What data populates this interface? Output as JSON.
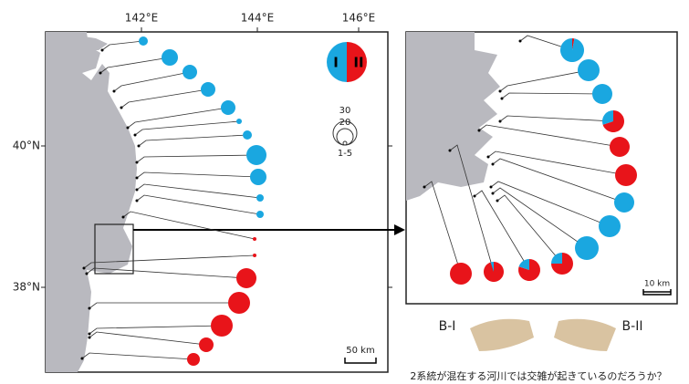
{
  "map": {
    "lon_labels": [
      "142°E",
      "144°E",
      "146°E"
    ],
    "lat_labels": [
      "40°N",
      "38°N"
    ],
    "legend": {
      "type_labels": [
        "I",
        "II"
      ],
      "size_labels": [
        "30",
        "20",
        "1-5"
      ]
    },
    "scale": "50 km",
    "pies_type_II_percent": [
      0,
      0,
      0,
      0,
      0,
      0,
      0,
      0,
      0,
      0,
      0,
      100,
      100,
      100,
      100,
      100,
      100,
      100
    ]
  },
  "inset": {
    "scale": "10 km",
    "pies_type_II_percent": [
      3,
      0,
      0,
      70,
      100,
      100,
      0,
      0,
      0,
      75,
      80,
      95,
      100
    ]
  },
  "photos": {
    "left": "B-I",
    "right": "B-II"
  },
  "caption": "2系統が混在する河川では交雑が起きているのだろうか？"
}
